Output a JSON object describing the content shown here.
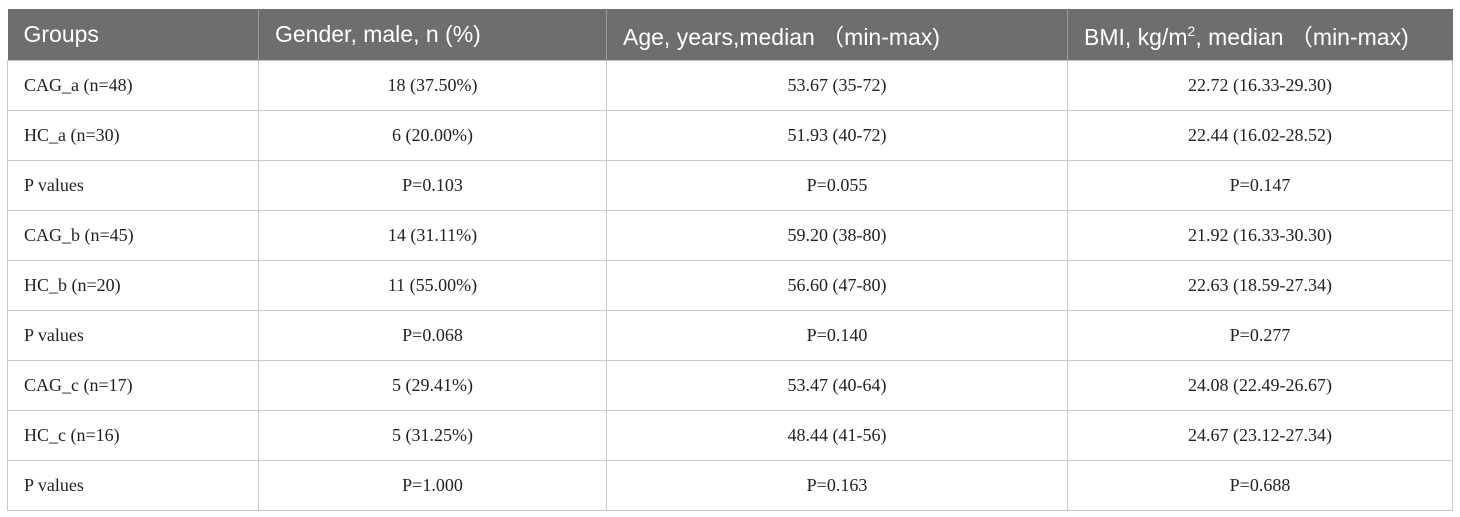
{
  "table": {
    "headers": {
      "groups": "Groups",
      "gender": "Gender, male, n (%)",
      "age": "Age, years,median （min-max)",
      "bmi_prefix": "BMI, kg/m",
      "bmi_sup": "2",
      "bmi_suffix": ", median （min-max)"
    },
    "rows": [
      {
        "group": "CAG_a (n=48)",
        "gender": "18 (37.50%)",
        "age": "53.67 (35-72)",
        "bmi": "22.72 (16.33-29.30)"
      },
      {
        "group": "HC_a (n=30)",
        "gender": "6 (20.00%)",
        "age": "51.93 (40-72)",
        "bmi": "22.44 (16.02-28.52)"
      },
      {
        "group": "P values",
        "gender": "P=0.103",
        "age": "P=0.055",
        "bmi": "P=0.147"
      },
      {
        "group": "CAG_b (n=45)",
        "gender": "14 (31.11%)",
        "age": "59.20 (38-80)",
        "bmi": "21.92 (16.33-30.30)"
      },
      {
        "group": "HC_b (n=20)",
        "gender": "11 (55.00%)",
        "age": "56.60 (47-80)",
        "bmi": "22.63 (18.59-27.34)"
      },
      {
        "group": "P values",
        "gender": "P=0.068",
        "age": "P=0.140",
        "bmi": "P=0.277"
      },
      {
        "group": "CAG_c (n=17)",
        "gender": "5 (29.41%)",
        "age": "53.47 (40-64)",
        "bmi": "24.08 (22.49-26.67)"
      },
      {
        "group": "HC_c (n=16)",
        "gender": "5 (31.25%)",
        "age": "48.44 (41-56)",
        "bmi": "24.67 (23.12-27.34)"
      },
      {
        "group": "P values",
        "gender": "P=1.000",
        "age": "P=0.163",
        "bmi": "P=0.688"
      }
    ]
  },
  "colors": {
    "header_bg": "#6e6e6e",
    "header_text": "#ffffff",
    "border": "#c9c9c9",
    "cell_text": "#222222"
  }
}
